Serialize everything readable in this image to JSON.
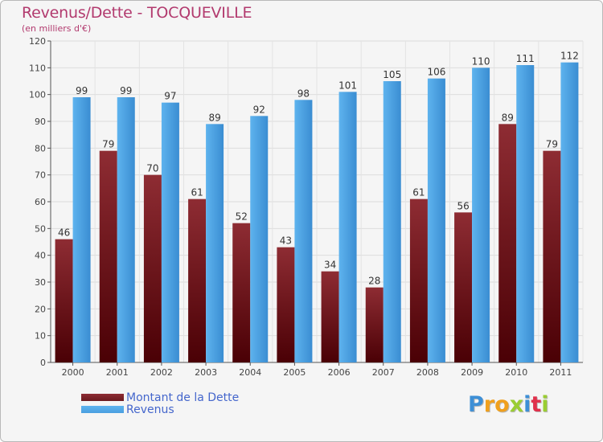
{
  "header": {
    "title": "Revenus/Dette - TOCQUEVILLE",
    "subtitle": "(en milliers d'€)"
  },
  "legend": {
    "items": [
      {
        "label": "Montant de la Dette",
        "color": "#6b1a1f"
      },
      {
        "label": "Revenus",
        "color": "#4a9fe0"
      }
    ]
  },
  "logo": {
    "letters": [
      {
        "char": "P",
        "color": "#3d8fd6"
      },
      {
        "char": "r",
        "color": "#f0a01e"
      },
      {
        "char": "o",
        "color": "#f0a01e"
      },
      {
        "char": "x",
        "color": "#9acd32"
      },
      {
        "char": "i",
        "color": "#3d8fd6"
      },
      {
        "char": "t",
        "color": "#e0304b"
      },
      {
        "char": "i",
        "color": "#9acd32"
      }
    ]
  },
  "chart_data": {
    "type": "bar",
    "title": "Revenus/Dette - TOCQUEVILLE",
    "subtitle": "(en milliers d'€)",
    "categories": [
      "2000",
      "2001",
      "2002",
      "2003",
      "2004",
      "2005",
      "2006",
      "2007",
      "2008",
      "2009",
      "2010",
      "2011"
    ],
    "series": [
      {
        "name": "Montant de la Dette",
        "color": "#6b1a1f",
        "values": [
          46,
          79,
          70,
          61,
          52,
          43,
          34,
          28,
          61,
          56,
          89,
          79
        ]
      },
      {
        "name": "Revenus",
        "color": "#4a9fe0",
        "values": [
          99,
          99,
          97,
          89,
          92,
          98,
          101,
          105,
          106,
          110,
          111,
          112
        ]
      }
    ],
    "ylim": [
      0,
      120
    ],
    "yticks": [
      0,
      10,
      20,
      30,
      40,
      50,
      60,
      70,
      80,
      90,
      100,
      110,
      120
    ],
    "grid": true,
    "legend_position": "bottom-left"
  }
}
